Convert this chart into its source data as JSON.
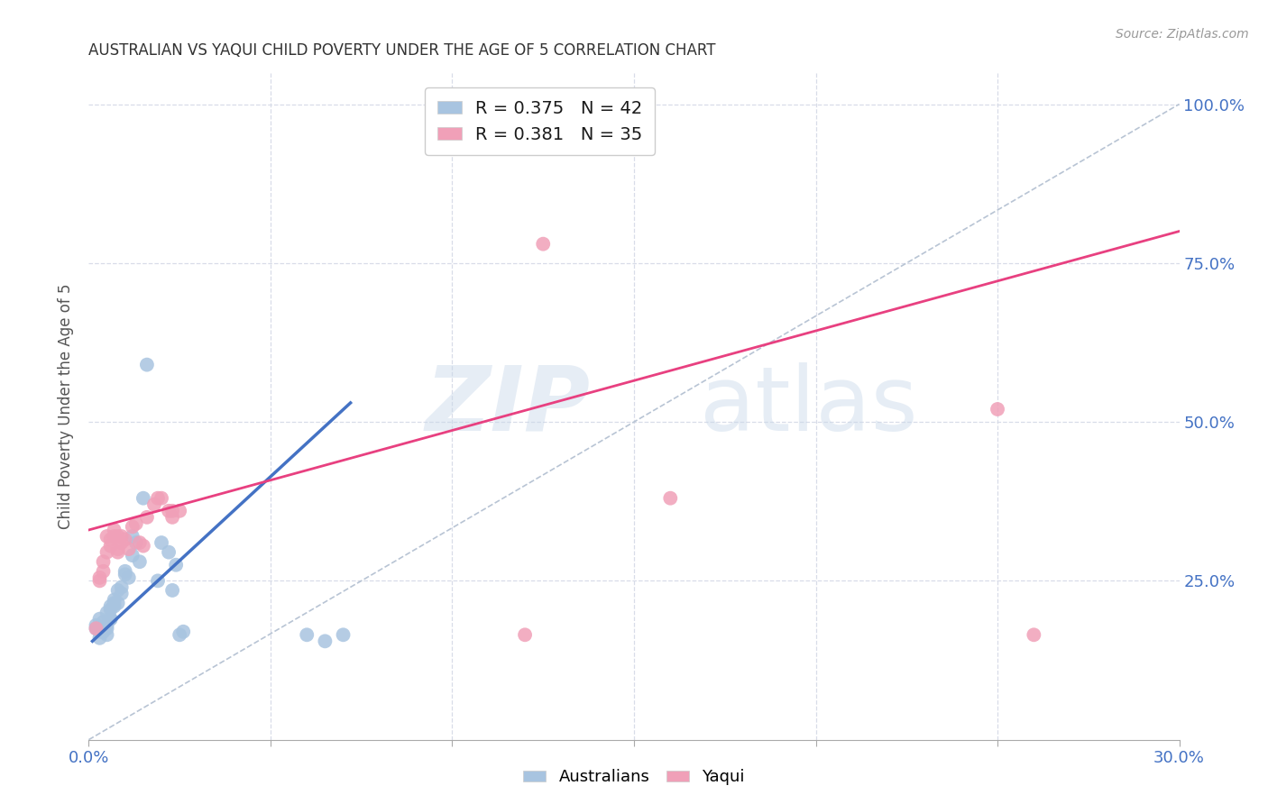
{
  "title": "AUSTRALIAN VS YAQUI CHILD POVERTY UNDER THE AGE OF 5 CORRELATION CHART",
  "source": "Source: ZipAtlas.com",
  "ylabel": "Child Poverty Under the Age of 5",
  "xlim": [
    0.0,
    0.3
  ],
  "ylim": [
    0.0,
    1.05
  ],
  "xticks": [
    0.0,
    0.05,
    0.1,
    0.15,
    0.2,
    0.25,
    0.3
  ],
  "xticklabels": [
    "0.0%",
    "",
    "",
    "",
    "",
    "",
    "30.0%"
  ],
  "yticks_right": [
    0.25,
    0.5,
    0.75,
    1.0
  ],
  "ytick_labels_right": [
    "25.0%",
    "50.0%",
    "75.0%",
    "100.0%"
  ],
  "legend_r1": "R = 0.375",
  "legend_n1": "N = 42",
  "legend_r2": "R = 0.381",
  "legend_n2": "N = 35",
  "color_australian": "#a8c4e0",
  "color_yaqui": "#f0a0b8",
  "color_trend_australian": "#4472c4",
  "color_trend_yaqui": "#e84080",
  "color_refline": "#b8c4d4",
  "background_color": "#ffffff",
  "grid_color": "#d8dce8",
  "aus_trend_x": [
    0.001,
    0.072
  ],
  "aus_trend_y": [
    0.155,
    0.53
  ],
  "yaq_trend_x": [
    0.0,
    0.3
  ],
  "yaq_trend_y": [
    0.33,
    0.8
  ],
  "australian_x": [
    0.002,
    0.002,
    0.003,
    0.003,
    0.003,
    0.004,
    0.004,
    0.004,
    0.005,
    0.005,
    0.005,
    0.005,
    0.006,
    0.006,
    0.006,
    0.006,
    0.007,
    0.007,
    0.007,
    0.008,
    0.008,
    0.009,
    0.009,
    0.01,
    0.01,
    0.011,
    0.012,
    0.012,
    0.013,
    0.014,
    0.015,
    0.016,
    0.019,
    0.02,
    0.022,
    0.023,
    0.024,
    0.025,
    0.026,
    0.06,
    0.065,
    0.07
  ],
  "australian_y": [
    0.175,
    0.18,
    0.19,
    0.17,
    0.16,
    0.175,
    0.185,
    0.17,
    0.2,
    0.175,
    0.18,
    0.165,
    0.19,
    0.205,
    0.21,
    0.19,
    0.22,
    0.215,
    0.21,
    0.235,
    0.215,
    0.24,
    0.23,
    0.26,
    0.265,
    0.255,
    0.29,
    0.32,
    0.31,
    0.28,
    0.38,
    0.59,
    0.25,
    0.31,
    0.295,
    0.235,
    0.275,
    0.165,
    0.17,
    0.165,
    0.155,
    0.165
  ],
  "yaqui_x": [
    0.002,
    0.003,
    0.003,
    0.004,
    0.004,
    0.005,
    0.005,
    0.006,
    0.006,
    0.007,
    0.007,
    0.008,
    0.008,
    0.008,
    0.009,
    0.009,
    0.01,
    0.011,
    0.012,
    0.013,
    0.014,
    0.015,
    0.016,
    0.018,
    0.019,
    0.02,
    0.022,
    0.023,
    0.023,
    0.025,
    0.12,
    0.125,
    0.16,
    0.25,
    0.26
  ],
  "yaqui_y": [
    0.175,
    0.25,
    0.255,
    0.265,
    0.28,
    0.295,
    0.32,
    0.305,
    0.315,
    0.32,
    0.33,
    0.32,
    0.295,
    0.3,
    0.32,
    0.31,
    0.315,
    0.3,
    0.335,
    0.34,
    0.31,
    0.305,
    0.35,
    0.37,
    0.38,
    0.38,
    0.36,
    0.35,
    0.36,
    0.36,
    0.165,
    0.78,
    0.38,
    0.52,
    0.165
  ]
}
